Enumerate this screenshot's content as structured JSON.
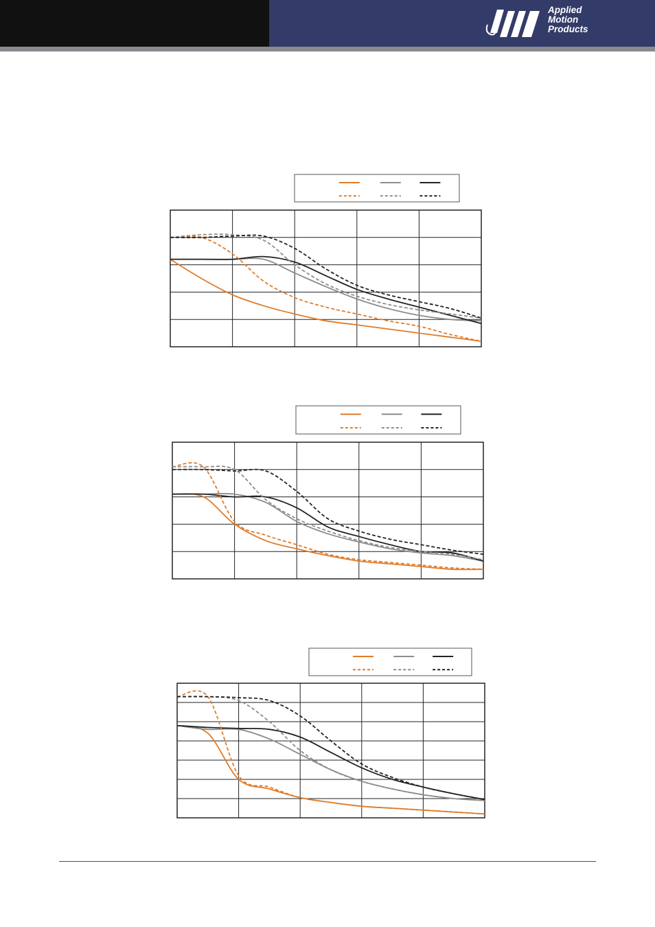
{
  "header": {
    "brand_lines": [
      "Applied",
      "Motion",
      "Products"
    ],
    "brand_color": "#333b69",
    "accent_color": "#111111",
    "band_color": "#8a8a8e"
  },
  "chart_data": [
    {
      "type": "line",
      "grid": true,
      "x": [
        0,
        5,
        10,
        15,
        20,
        25,
        30,
        35,
        40,
        45,
        50
      ],
      "xlim": [
        0,
        50
      ],
      "ylim": [
        0,
        5
      ],
      "legend": "top-right",
      "series": [
        {
          "style": "solid",
          "color": "#e07b28",
          "values": [
            3.2,
            2.5,
            1.9,
            1.5,
            1.2,
            0.95,
            0.8,
            0.65,
            0.5,
            0.35,
            0.2
          ]
        },
        {
          "style": "solid",
          "color": "#8c8c8c",
          "values": [
            3.2,
            3.2,
            3.2,
            3.2,
            2.7,
            2.2,
            1.75,
            1.4,
            1.15,
            1.0,
            0.95
          ]
        },
        {
          "style": "solid",
          "color": "#222222",
          "values": [
            3.2,
            3.2,
            3.2,
            3.3,
            3.1,
            2.6,
            2.1,
            1.75,
            1.45,
            1.15,
            0.85
          ]
        },
        {
          "style": "dashed",
          "color": "#e07b28",
          "values": [
            4.0,
            4.0,
            3.4,
            2.4,
            1.8,
            1.45,
            1.2,
            0.95,
            0.75,
            0.45,
            0.2
          ]
        },
        {
          "style": "dashed",
          "color": "#8c8c8c",
          "values": [
            4.0,
            4.1,
            4.1,
            3.9,
            3.0,
            2.3,
            1.85,
            1.55,
            1.35,
            1.2,
            1.05
          ]
        },
        {
          "style": "dashed",
          "color": "#222222",
          "values": [
            4.0,
            4.0,
            4.05,
            4.05,
            3.6,
            2.85,
            2.25,
            1.9,
            1.65,
            1.4,
            1.05
          ]
        }
      ]
    },
    {
      "type": "line",
      "grid": true,
      "x": [
        0,
        5,
        10,
        15,
        20,
        25,
        30,
        35,
        40,
        45,
        50
      ],
      "xlim": [
        0,
        50
      ],
      "ylim": [
        0,
        5
      ],
      "legend": "top-right",
      "series": [
        {
          "style": "solid",
          "color": "#e07b28",
          "values": [
            3.1,
            3.0,
            2.0,
            1.4,
            1.1,
            0.85,
            0.65,
            0.55,
            0.45,
            0.35,
            0.35
          ]
        },
        {
          "style": "solid",
          "color": "#8c8c8c",
          "values": [
            3.1,
            3.1,
            3.1,
            2.8,
            2.1,
            1.65,
            1.35,
            1.1,
            0.95,
            0.85,
            0.65
          ]
        },
        {
          "style": "solid",
          "color": "#222222",
          "values": [
            3.1,
            3.1,
            3.0,
            3.0,
            2.6,
            1.9,
            1.55,
            1.25,
            1.0,
            0.95,
            0.65
          ]
        },
        {
          "style": "dashed",
          "color": "#e07b28",
          "values": [
            4.1,
            4.1,
            2.1,
            1.6,
            1.25,
            0.9,
            0.7,
            0.6,
            0.5,
            0.4,
            0.35
          ]
        },
        {
          "style": "dashed",
          "color": "#8c8c8c",
          "values": [
            4.1,
            4.1,
            4.0,
            2.9,
            2.2,
            1.75,
            1.4,
            1.15,
            1.0,
            0.9,
            0.7
          ]
        },
        {
          "style": "dashed",
          "color": "#222222",
          "values": [
            4.0,
            4.0,
            3.95,
            3.95,
            3.2,
            2.2,
            1.75,
            1.45,
            1.25,
            1.05,
            0.9
          ]
        }
      ]
    },
    {
      "type": "line",
      "grid": true,
      "x": [
        0,
        5,
        10,
        15,
        20,
        25,
        30,
        35,
        40,
        45,
        50
      ],
      "xlim": [
        0,
        50
      ],
      "ylim": [
        0,
        7
      ],
      "legend": "top-right",
      "series": [
        {
          "style": "solid",
          "color": "#e07b28",
          "values": [
            4.8,
            4.4,
            2.0,
            1.5,
            1.05,
            0.8,
            0.6,
            0.5,
            0.4,
            0.3,
            0.2
          ]
        },
        {
          "style": "solid",
          "color": "#8c8c8c",
          "values": [
            4.8,
            4.6,
            4.6,
            4.1,
            3.3,
            2.5,
            1.9,
            1.5,
            1.2,
            1.0,
            0.9
          ]
        },
        {
          "style": "solid",
          "color": "#222222",
          "values": [
            4.8,
            4.7,
            4.65,
            4.6,
            4.2,
            3.4,
            2.6,
            2.0,
            1.6,
            1.25,
            0.95
          ]
        },
        {
          "style": "dashed",
          "color": "#e07b28",
          "values": [
            6.3,
            6.3,
            2.2,
            1.6,
            1.05,
            0.8,
            0.6,
            0.5,
            0.4,
            0.3,
            0.2
          ]
        },
        {
          "style": "dashed",
          "color": "#8c8c8c",
          "values": [
            6.3,
            6.3,
            6.1,
            5.0,
            3.5,
            2.5,
            1.9,
            1.5,
            1.2,
            1.0,
            0.9
          ]
        },
        {
          "style": "dashed",
          "color": "#222222",
          "values": [
            6.3,
            6.3,
            6.25,
            6.1,
            5.3,
            4.0,
            2.8,
            2.1,
            1.6,
            1.25,
            0.95
          ]
        }
      ]
    }
  ]
}
